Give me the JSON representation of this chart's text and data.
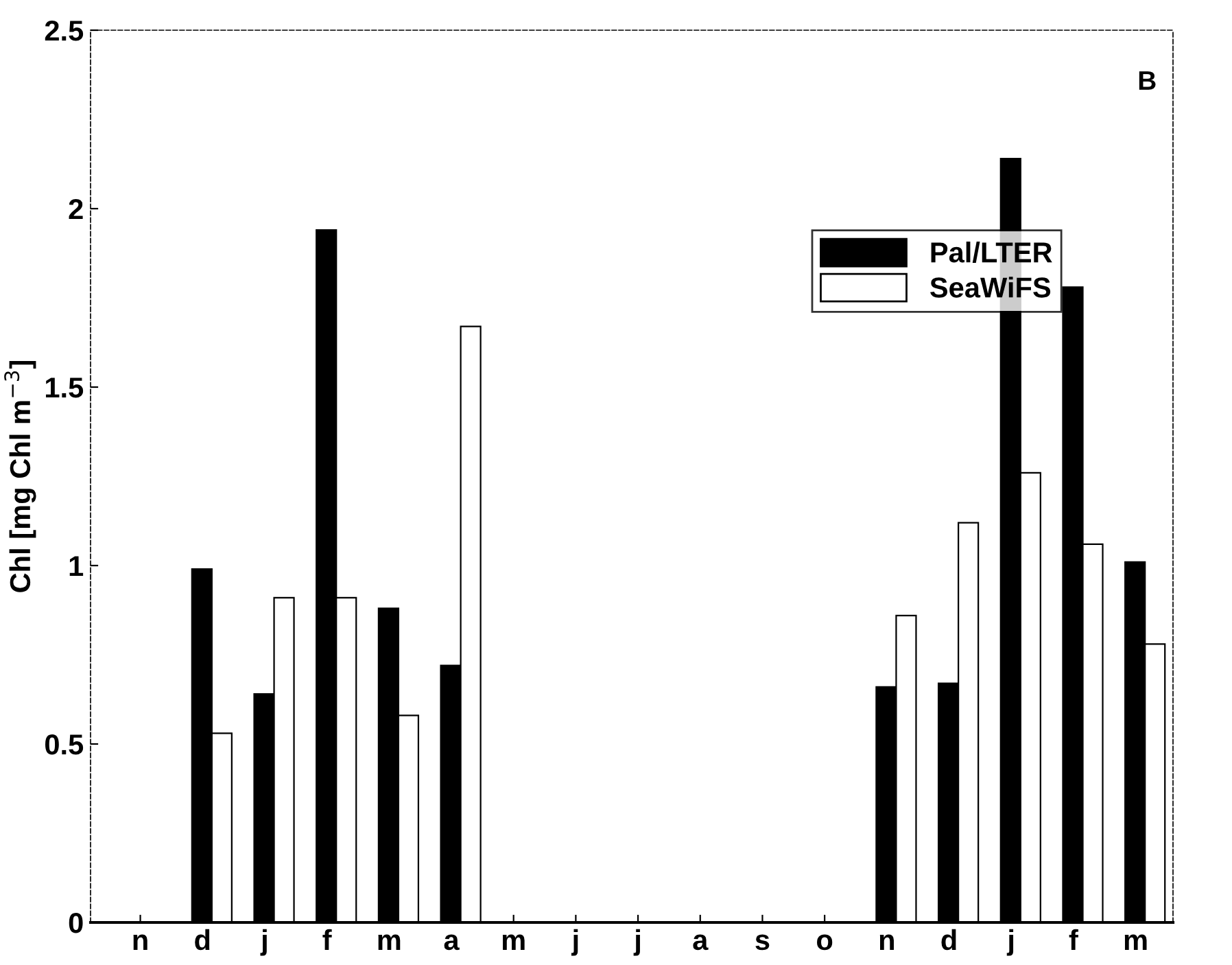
{
  "chart_data": {
    "type": "bar",
    "categories": [
      "n",
      "d",
      "j",
      "f",
      "m",
      "a",
      "m",
      "j",
      "j",
      "a",
      "s",
      "o",
      "n",
      "d",
      "j",
      "f",
      "m"
    ],
    "series": [
      {
        "name": "Pal/LTER",
        "color": "#000000",
        "values": [
          null,
          0.99,
          0.64,
          1.94,
          0.88,
          0.72,
          null,
          null,
          null,
          null,
          null,
          null,
          0.66,
          0.67,
          2.14,
          1.78,
          1.01
        ]
      },
      {
        "name": "SeaWiFS",
        "color": "#ffffff",
        "values": [
          null,
          0.53,
          0.91,
          0.91,
          0.58,
          1.67,
          null,
          null,
          null,
          null,
          null,
          null,
          0.86,
          1.12,
          1.26,
          1.06,
          0.78
        ]
      }
    ],
    "ylabel": "Chl [mg Chl m$^{−3}$]",
    "ylim": [
      0,
      2.5
    ],
    "yticks": [
      0,
      0.5,
      1,
      1.5,
      2,
      2.5
    ],
    "annotations": [
      "B"
    ],
    "legend": "right",
    "grid": false
  }
}
